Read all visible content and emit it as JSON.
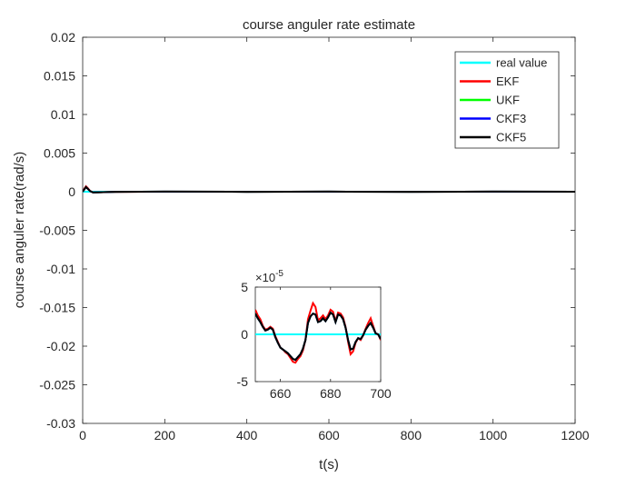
{
  "chart_data": {
    "type": "line",
    "title": "course anguler rate estimate",
    "xlabel": "t(s)",
    "ylabel": "course anguler rate(rad/s)",
    "xlim": [
      0,
      1200
    ],
    "ylim": [
      -0.03,
      0.02
    ],
    "xticks": [
      0,
      200,
      400,
      600,
      800,
      1000,
      1200
    ],
    "xtick_labels": [
      "0",
      "200",
      "400",
      "600",
      "800",
      "1000",
      "1200"
    ],
    "yticks": [
      0.02,
      0.015,
      0.01,
      0.005,
      0,
      -0.005,
      -0.01,
      -0.015,
      -0.02,
      -0.025,
      -0.03
    ],
    "ytick_labels": [
      "0.02",
      "0.015",
      "0.01",
      "0.005",
      "0",
      "-0.005",
      "-0.01",
      "-0.015",
      "-0.02",
      "-0.025",
      "-0.03"
    ],
    "grid": false,
    "legend_position": "top-right",
    "series": [
      {
        "name": "real value",
        "color": "#00ffff",
        "points": [
          [
            0,
            0
          ],
          [
            1200,
            0
          ]
        ]
      },
      {
        "name": "EKF",
        "color": "#ff0000",
        "points": [
          [
            0,
            0
          ],
          [
            4,
            0.0004
          ],
          [
            8,
            0.0007
          ],
          [
            12,
            0.0005
          ],
          [
            18,
            0.0001
          ],
          [
            25,
            -0.0001
          ],
          [
            40,
            -8e-05
          ],
          [
            80,
            -3e-05
          ],
          [
            200,
            1e-05
          ],
          [
            400,
            -1e-05
          ],
          [
            600,
            1e-05
          ],
          [
            800,
            -1e-05
          ],
          [
            1000,
            1e-05
          ],
          [
            1200,
            0
          ]
        ]
      },
      {
        "name": "UKF",
        "color": "#00ff00",
        "points": [
          [
            0,
            0
          ],
          [
            4,
            0.0003
          ],
          [
            8,
            0.0006
          ],
          [
            12,
            0.0004
          ],
          [
            18,
            8e-05
          ],
          [
            25,
            -9e-05
          ],
          [
            40,
            -7e-05
          ],
          [
            80,
            -2e-05
          ],
          [
            200,
            1e-05
          ],
          [
            400,
            -1e-05
          ],
          [
            600,
            1e-05
          ],
          [
            800,
            -1e-05
          ],
          [
            1000,
            1e-05
          ],
          [
            1200,
            0
          ]
        ]
      },
      {
        "name": "CKF3",
        "color": "#0000ff",
        "points": [
          [
            0,
            0
          ],
          [
            4,
            0.0003
          ],
          [
            8,
            0.0006
          ],
          [
            12,
            0.0004
          ],
          [
            18,
            8e-05
          ],
          [
            25,
            -9e-05
          ],
          [
            40,
            -7e-05
          ],
          [
            80,
            -2e-05
          ],
          [
            200,
            1e-05
          ],
          [
            400,
            -1e-05
          ],
          [
            600,
            1e-05
          ],
          [
            800,
            -1e-05
          ],
          [
            1000,
            1e-05
          ],
          [
            1200,
            0
          ]
        ]
      },
      {
        "name": "CKF5",
        "color": "#000000",
        "points": [
          [
            0,
            0
          ],
          [
            4,
            0.0003
          ],
          [
            8,
            0.0006
          ],
          [
            12,
            0.0004
          ],
          [
            18,
            8e-05
          ],
          [
            25,
            -9e-05
          ],
          [
            40,
            -7e-05
          ],
          [
            80,
            -2e-05
          ],
          [
            200,
            1e-05
          ],
          [
            400,
            -1e-05
          ],
          [
            600,
            1e-05
          ],
          [
            800,
            -1e-05
          ],
          [
            1000,
            1e-05
          ],
          [
            1200,
            0
          ]
        ]
      }
    ],
    "inset": {
      "type": "line",
      "xlim": [
        650,
        700
      ],
      "ylim": [
        -5,
        5
      ],
      "yscale_label": "×10",
      "yscale_exp": "-5",
      "xticks": [
        660,
        680,
        700
      ],
      "xtick_labels": [
        "660",
        "680",
        "700"
      ],
      "yticks": [
        5,
        0,
        -5
      ],
      "ytick_labels": [
        "5",
        "0",
        "-5"
      ],
      "series": [
        {
          "name": "real value",
          "color": "#00ffff",
          "points": [
            [
              650,
              0
            ],
            [
              700,
              0
            ]
          ]
        },
        {
          "name": "EKF",
          "color": "#ff0000",
          "points": [
            [
              650,
              2.6
            ],
            [
              651,
              2.0
            ],
            [
              652,
              1.6
            ],
            [
              653,
              0.9
            ],
            [
              654,
              0.5
            ],
            [
              655,
              0.6
            ],
            [
              656,
              0.8
            ],
            [
              657,
              0.6
            ],
            [
              658,
              -0.2
            ],
            [
              659,
              -0.8
            ],
            [
              660,
              -1.4
            ],
            [
              661,
              -1.6
            ],
            [
              662,
              -1.9
            ],
            [
              663,
              -2.1
            ],
            [
              664,
              -2.5
            ],
            [
              665,
              -2.9
            ],
            [
              666,
              -3.0
            ],
            [
              667,
              -2.6
            ],
            [
              668,
              -2.3
            ],
            [
              669,
              -1.7
            ],
            [
              670,
              -0.6
            ],
            [
              671,
              1.6
            ],
            [
              672,
              2.5
            ],
            [
              673,
              3.3
            ],
            [
              674,
              2.9
            ],
            [
              675,
              1.5
            ],
            [
              676,
              1.7
            ],
            [
              677,
              2.0
            ],
            [
              678,
              1.6
            ],
            [
              679,
              2.0
            ],
            [
              680,
              2.6
            ],
            [
              681,
              2.4
            ],
            [
              682,
              1.4
            ],
            [
              683,
              2.3
            ],
            [
              684,
              2.2
            ],
            [
              685,
              1.8
            ],
            [
              686,
              0.8
            ],
            [
              687,
              -0.8
            ],
            [
              688,
              -2.1
            ],
            [
              689,
              -1.8
            ],
            [
              690,
              -0.9
            ],
            [
              691,
              -0.4
            ],
            [
              692,
              -0.6
            ],
            [
              693,
              -0.1
            ],
            [
              694,
              0.6
            ],
            [
              695,
              1.2
            ],
            [
              696,
              1.7
            ],
            [
              697,
              0.9
            ],
            [
              698,
              0.1
            ],
            [
              699,
              0.0
            ],
            [
              700,
              -0.6
            ]
          ]
        },
        {
          "name": "UKF",
          "color": "#00ff00",
          "points": [
            [
              650,
              2.2
            ],
            [
              651,
              1.7
            ],
            [
              652,
              1.3
            ],
            [
              653,
              0.8
            ],
            [
              654,
              0.4
            ],
            [
              655,
              0.5
            ],
            [
              656,
              0.7
            ],
            [
              657,
              0.5
            ],
            [
              658,
              -0.3
            ],
            [
              659,
              -0.9
            ],
            [
              660,
              -1.4
            ],
            [
              661,
              -1.6
            ],
            [
              662,
              -1.8
            ],
            [
              663,
              -2.0
            ],
            [
              664,
              -2.3
            ],
            [
              665,
              -2.6
            ],
            [
              666,
              -2.7
            ],
            [
              667,
              -2.4
            ],
            [
              668,
              -2.1
            ],
            [
              669,
              -1.5
            ],
            [
              670,
              -0.6
            ],
            [
              671,
              1.2
            ],
            [
              672,
              1.9
            ],
            [
              673,
              2.2
            ],
            [
              674,
              2.1
            ],
            [
              675,
              1.3
            ],
            [
              676,
              1.4
            ],
            [
              677,
              1.7
            ],
            [
              678,
              1.4
            ],
            [
              679,
              1.8
            ],
            [
              680,
              2.3
            ],
            [
              681,
              2.1
            ],
            [
              682,
              1.3
            ],
            [
              683,
              2.1
            ],
            [
              684,
              2.0
            ],
            [
              685,
              1.6
            ],
            [
              686,
              0.7
            ],
            [
              687,
              -0.6
            ],
            [
              688,
              -1.6
            ],
            [
              689,
              -1.5
            ],
            [
              690,
              -0.8
            ],
            [
              691,
              -0.4
            ],
            [
              692,
              -0.5
            ],
            [
              693,
              -0.1
            ],
            [
              694,
              0.5
            ],
            [
              695,
              0.9
            ],
            [
              696,
              1.2
            ],
            [
              697,
              0.7
            ],
            [
              698,
              0.1
            ],
            [
              699,
              0.0
            ],
            [
              700,
              -0.5
            ]
          ]
        },
        {
          "name": "CKF3",
          "color": "#0000ff",
          "points": [
            [
              650,
              2.2
            ],
            [
              651,
              1.7
            ],
            [
              652,
              1.3
            ],
            [
              653,
              0.8
            ],
            [
              654,
              0.4
            ],
            [
              655,
              0.5
            ],
            [
              656,
              0.7
            ],
            [
              657,
              0.5
            ],
            [
              658,
              -0.3
            ],
            [
              659,
              -0.9
            ],
            [
              660,
              -1.4
            ],
            [
              661,
              -1.6
            ],
            [
              662,
              -1.8
            ],
            [
              663,
              -2.0
            ],
            [
              664,
              -2.3
            ],
            [
              665,
              -2.6
            ],
            [
              666,
              -2.7
            ],
            [
              667,
              -2.4
            ],
            [
              668,
              -2.1
            ],
            [
              669,
              -1.5
            ],
            [
              670,
              -0.6
            ],
            [
              671,
              1.2
            ],
            [
              672,
              1.9
            ],
            [
              673,
              2.2
            ],
            [
              674,
              2.1
            ],
            [
              675,
              1.3
            ],
            [
              676,
              1.4
            ],
            [
              677,
              1.7
            ],
            [
              678,
              1.4
            ],
            [
              679,
              1.8
            ],
            [
              680,
              2.3
            ],
            [
              681,
              2.1
            ],
            [
              682,
              1.3
            ],
            [
              683,
              2.1
            ],
            [
              684,
              2.0
            ],
            [
              685,
              1.6
            ],
            [
              686,
              0.7
            ],
            [
              687,
              -0.6
            ],
            [
              688,
              -1.6
            ],
            [
              689,
              -1.5
            ],
            [
              690,
              -0.8
            ],
            [
              691,
              -0.4
            ],
            [
              692,
              -0.5
            ],
            [
              693,
              -0.1
            ],
            [
              694,
              0.5
            ],
            [
              695,
              0.9
            ],
            [
              696,
              1.2
            ],
            [
              697,
              0.7
            ],
            [
              698,
              0.1
            ],
            [
              699,
              0.0
            ],
            [
              700,
              -0.5
            ]
          ]
        },
        {
          "name": "CKF5",
          "color": "#000000",
          "points": [
            [
              650,
              2.2
            ],
            [
              651,
              1.7
            ],
            [
              652,
              1.3
            ],
            [
              653,
              0.8
            ],
            [
              654,
              0.4
            ],
            [
              655,
              0.5
            ],
            [
              656,
              0.7
            ],
            [
              657,
              0.5
            ],
            [
              658,
              -0.3
            ],
            [
              659,
              -0.9
            ],
            [
              660,
              -1.4
            ],
            [
              661,
              -1.6
            ],
            [
              662,
              -1.8
            ],
            [
              663,
              -2.0
            ],
            [
              664,
              -2.3
            ],
            [
              665,
              -2.6
            ],
            [
              666,
              -2.7
            ],
            [
              667,
              -2.4
            ],
            [
              668,
              -2.1
            ],
            [
              669,
              -1.5
            ],
            [
              670,
              -0.6
            ],
            [
              671,
              1.2
            ],
            [
              672,
              1.9
            ],
            [
              673,
              2.2
            ],
            [
              674,
              2.1
            ],
            [
              675,
              1.3
            ],
            [
              676,
              1.4
            ],
            [
              677,
              1.7
            ],
            [
              678,
              1.4
            ],
            [
              679,
              1.8
            ],
            [
              680,
              2.3
            ],
            [
              681,
              2.1
            ],
            [
              682,
              1.3
            ],
            [
              683,
              2.1
            ],
            [
              684,
              2.0
            ],
            [
              685,
              1.6
            ],
            [
              686,
              0.7
            ],
            [
              687,
              -0.6
            ],
            [
              688,
              -1.6
            ],
            [
              689,
              -1.5
            ],
            [
              690,
              -0.8
            ],
            [
              691,
              -0.4
            ],
            [
              692,
              -0.5
            ],
            [
              693,
              -0.1
            ],
            [
              694,
              0.5
            ],
            [
              695,
              0.9
            ],
            [
              696,
              1.2
            ],
            [
              697,
              0.7
            ],
            [
              698,
              0.1
            ],
            [
              699,
              0.0
            ],
            [
              700,
              -0.5
            ]
          ]
        }
      ]
    }
  }
}
